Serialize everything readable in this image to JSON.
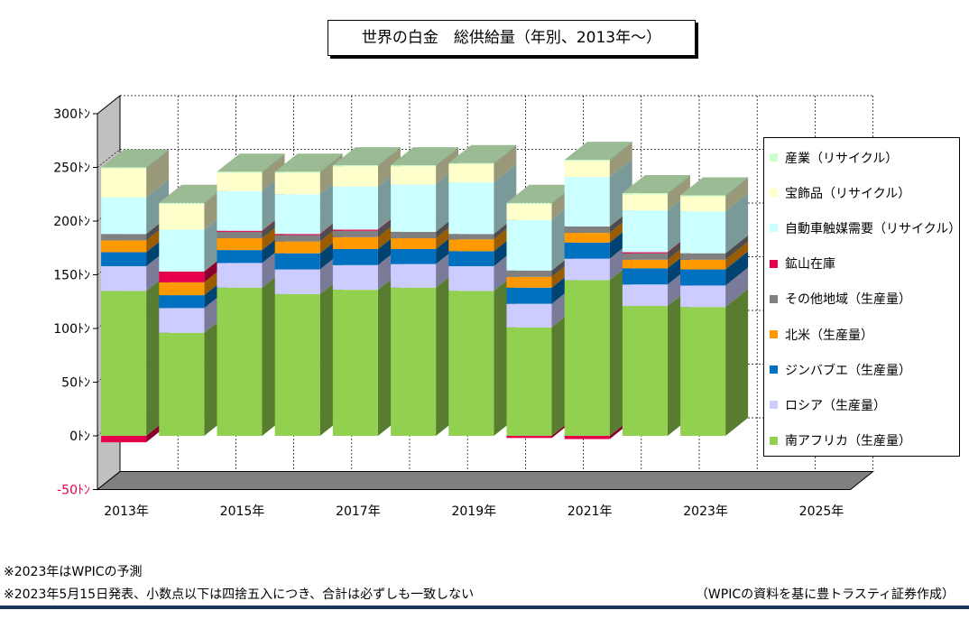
{
  "title": "世界の白金　総供給量（年別、2013年〜）",
  "notes": {
    "forecast": "※2023年はWPICの予測",
    "published": "※2023年5月15日発表、小数点以下は四捨五入につき、合計は必ずしも一致しない",
    "source": "（WPICの資料を基に豊トラスティ証券作成）"
  },
  "chart_data": {
    "type": "bar",
    "stacked": true,
    "three_d": true,
    "categories": [
      "2013年",
      "2014年",
      "2015年",
      "2016年",
      "2017年",
      "2018年",
      "2019年",
      "2020年",
      "2021年",
      "2022年",
      "2023年",
      "2024年",
      "2025年"
    ],
    "x_tick_labels": [
      "2013年",
      "2015年",
      "2017年",
      "2019年",
      "2021年",
      "2023年",
      "2025年"
    ],
    "y_tick_labels": [
      "-50ﾄﾝ",
      "0ﾄﾝ",
      "50ﾄﾝ",
      "100ﾄﾝ",
      "150ﾄﾝ",
      "200ﾄﾝ",
      "250ﾄﾝ",
      "300ﾄﾝ"
    ],
    "ylim": [
      -50,
      300
    ],
    "grid": true,
    "legend_position": "right",
    "series": [
      {
        "name": "南アフリカ（生産量）",
        "color": "#92d050",
        "values": [
          135,
          96,
          138,
          132,
          136,
          138,
          135,
          101,
          145,
          121,
          120,
          null,
          null
        ]
      },
      {
        "name": "ロシア（生産量）",
        "color": "#ccccff",
        "values": [
          23,
          23,
          23,
          23,
          23,
          22,
          23,
          22,
          20,
          20,
          20,
          null,
          null
        ]
      },
      {
        "name": "ジンバブエ（生産量）",
        "color": "#0070c0",
        "values": [
          13,
          12,
          12,
          15,
          15,
          14,
          14,
          15,
          15,
          15,
          15,
          null,
          null
        ]
      },
      {
        "name": "北米（生産量）",
        "color": "#ff9900",
        "values": [
          11,
          12,
          11,
          11,
          11,
          10,
          11,
          10,
          9,
          8,
          9,
          null,
          null
        ]
      },
      {
        "name": "その他地域（生産量）",
        "color": "#808080",
        "values": [
          6,
          0,
          6,
          6,
          6,
          6,
          5,
          6,
          6,
          6,
          6,
          null,
          null
        ]
      },
      {
        "name": "鉱山在庫",
        "color": "#e6004c",
        "values": [
          -6,
          10,
          1,
          1,
          1,
          0,
          0,
          -2,
          -3,
          1,
          0,
          null,
          null
        ]
      },
      {
        "name": "自動車触媒需要（リサイクル）",
        "color": "#ccffff",
        "values": [
          34,
          39,
          37,
          37,
          40,
          44,
          48,
          47,
          46,
          39,
          39,
          null,
          null
        ]
      },
      {
        "name": "宝飾品（リサイクル）",
        "color": "#ffffcc",
        "values": [
          27,
          24,
          17,
          20,
          19,
          17,
          17,
          15,
          15,
          15,
          14,
          null,
          null
        ]
      },
      {
        "name": "産業（リサイクル）",
        "color": "#ccffcc",
        "values": [
          1,
          1,
          1,
          1,
          1,
          1,
          1,
          1,
          1,
          1,
          1,
          null,
          null
        ]
      }
    ]
  }
}
